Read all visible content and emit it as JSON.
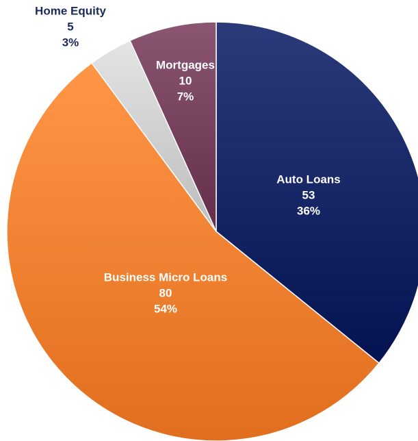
{
  "chart_data": {
    "type": "pie",
    "slices": [
      {
        "label": "Auto Loans",
        "value": 53,
        "percent": "36%",
        "color": "#0f1f5e",
        "label_color": "#ffffff"
      },
      {
        "label": "Business Micro Loans",
        "value": 80,
        "percent": "54%",
        "color": "#ec7a2a",
        "label_color": "#ffffff"
      },
      {
        "label": "Home Equity",
        "value": 5,
        "percent": "3%",
        "color": "#c8c8c8",
        "label_color": "#1b2a5c"
      },
      {
        "label": "Mortgages",
        "value": 10,
        "percent": "7%",
        "color": "#6e3a55",
        "label_color": "#ffffff"
      }
    ],
    "start_angle": "12 o'clock",
    "direction": "clockwise",
    "legend": "none",
    "gradient": true
  }
}
